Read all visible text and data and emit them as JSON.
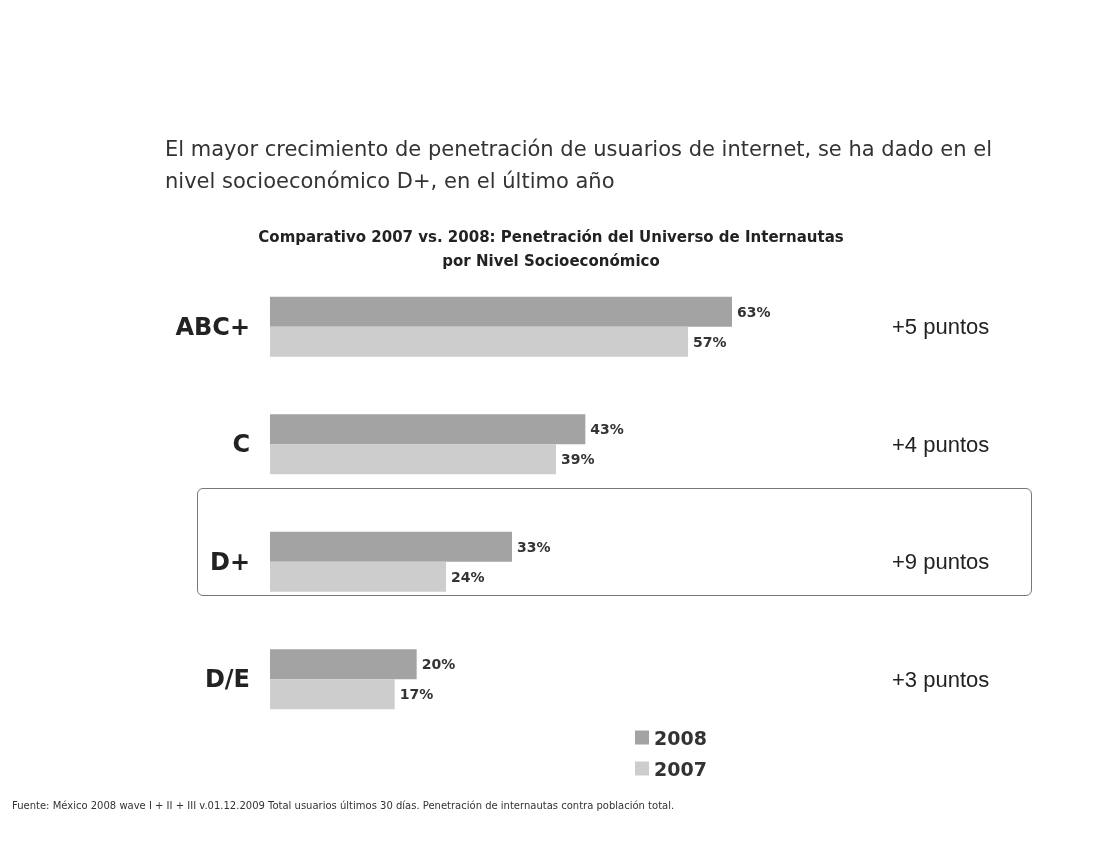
{
  "chart_data": {
    "type": "bar",
    "orientation": "horizontal",
    "title": "El mayor crecimiento de penetración de usuarios de internet, se ha dado en el nivel socioeconómico D+, en el último año",
    "subtitle": "Comparativo 2007 vs. 2008: Penetración del Universo de Internautas\npor Nivel Socioeconómico",
    "categories": [
      "ABC+",
      "C",
      "D+",
      "D/E"
    ],
    "series": [
      {
        "name": "2008",
        "color": "#a3a3a3",
        "values": [
          63,
          43,
          33,
          20
        ],
        "value_labels": [
          "63%",
          "43%",
          "33%",
          "20%"
        ]
      },
      {
        "name": "2007",
        "color": "#cdcdcd",
        "values": [
          57,
          39,
          24,
          17
        ],
        "value_labels": [
          "57%",
          "39%",
          "24%",
          "17%"
        ]
      }
    ],
    "annotations": [
      "+5 puntos",
      "+4 puntos",
      "+9 puntos",
      "+3 puntos",
      "Fuente: México 2008 wave I + II + III v.01.12.2009 Total usuarios últimos 30 días. Penetración de internautas contra población total."
    ],
    "legend": "bottom"
  }
}
